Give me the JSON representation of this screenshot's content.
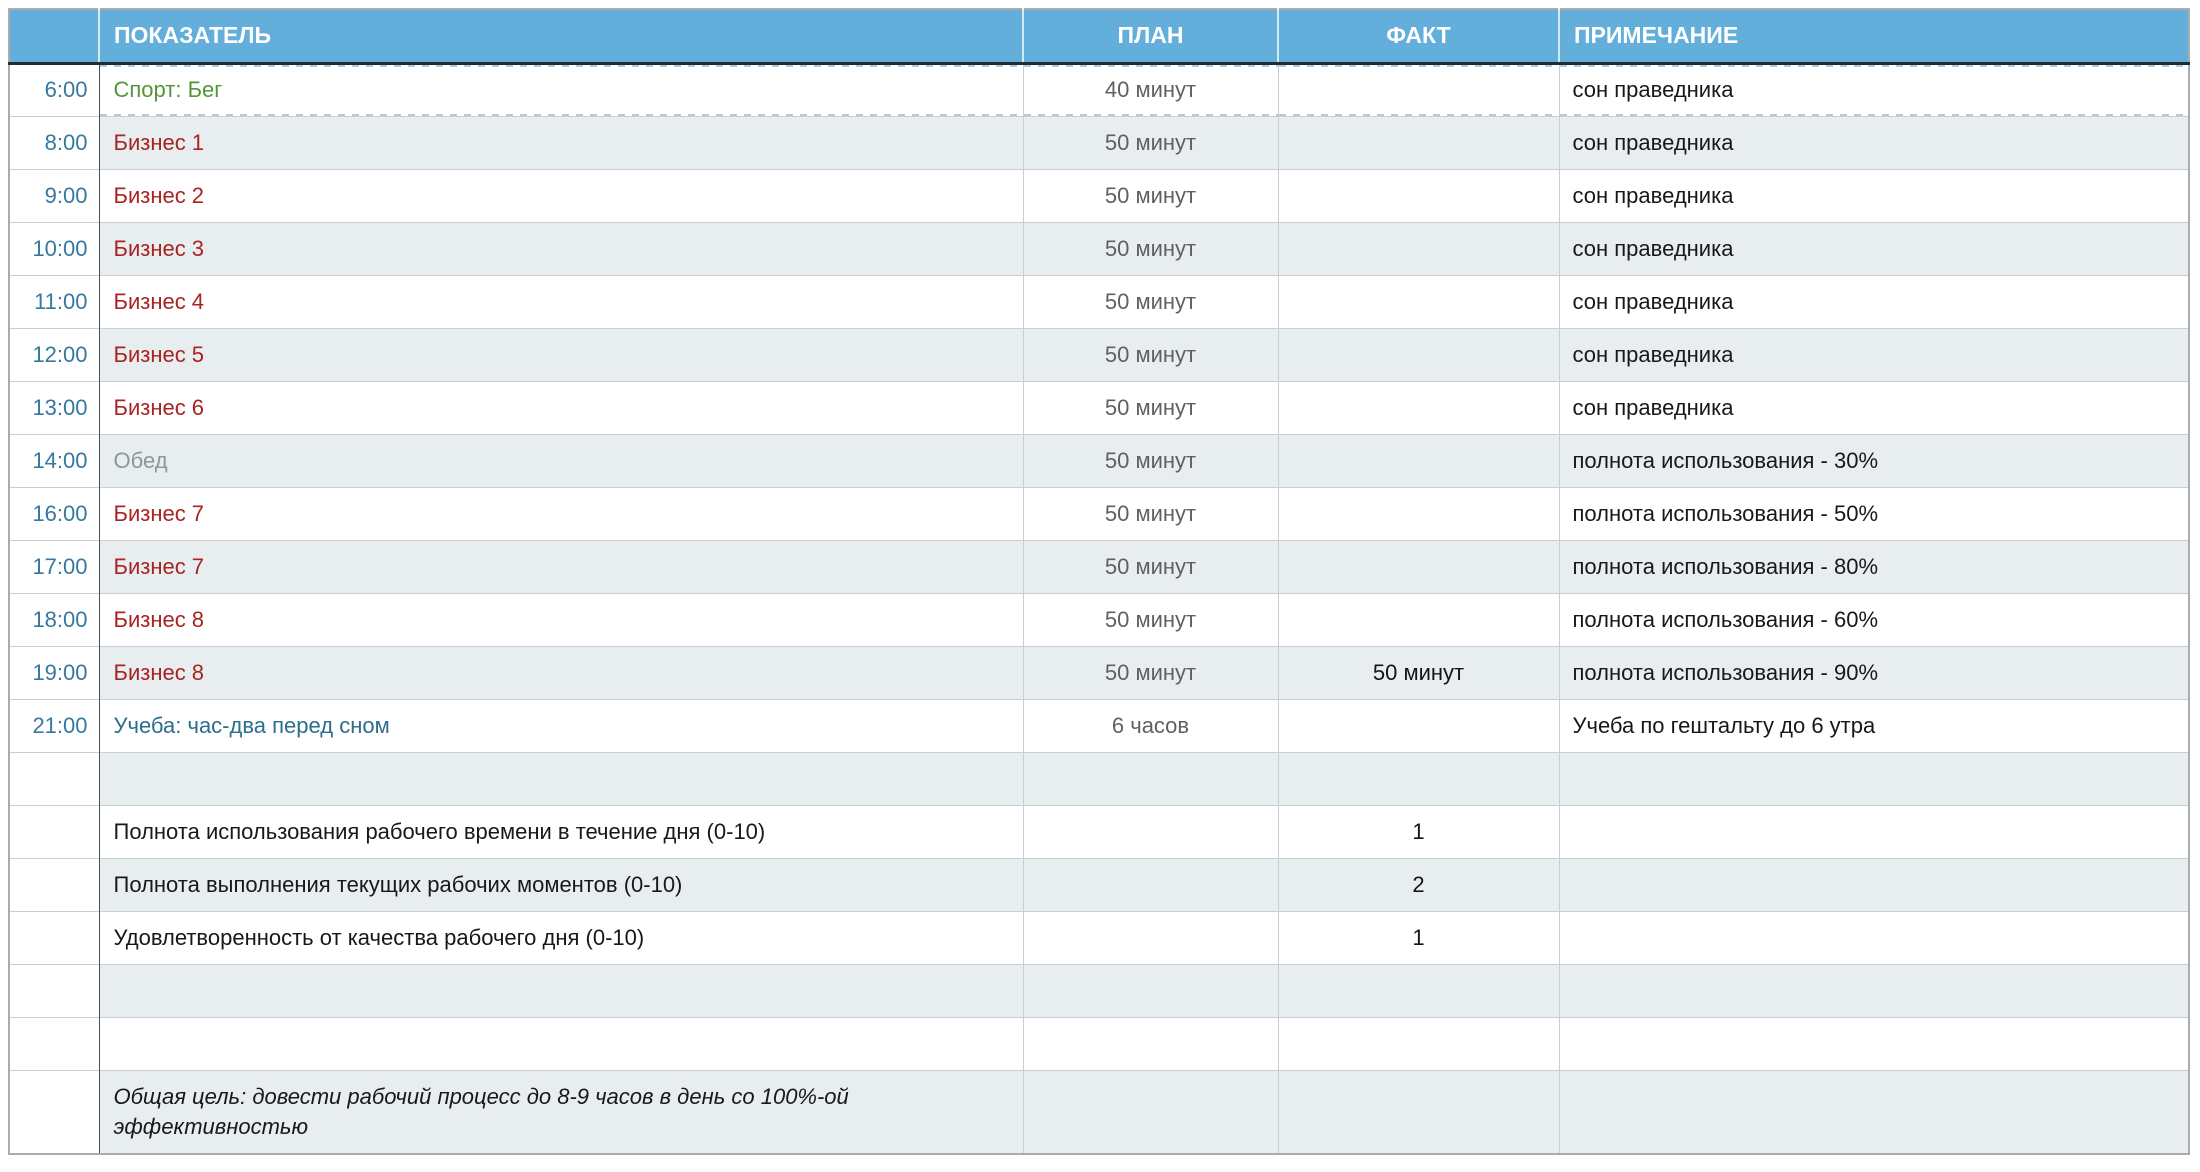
{
  "colors": {
    "header_bg": "#64aedb",
    "header_text": "#ffffff",
    "header_underline": "#1d2d38",
    "grid_line": "#c9ced2",
    "time_divider": "#4a4f53",
    "stripe_bg": "#e8edef",
    "time_text": "#37789e",
    "sport": "#55953a",
    "business": "#a82423",
    "meal": "#8f969a",
    "study": "#2d6e8a",
    "plan_text": "#5d6164",
    "fact_text": "#141517",
    "note_text": "#17181a",
    "text": "#17181a",
    "ants": "#b6c8d4"
  },
  "table": {
    "headers": {
      "time": "",
      "indicator": "ПОКАЗАТЕЛЬ",
      "plan": "ПЛАН",
      "fact": "ФАКТ",
      "note": "ПРИМЕЧАНИЕ"
    },
    "rows": [
      {
        "time": "6:00",
        "indicator": "Спорт: Бег",
        "type": "sport",
        "ants": true,
        "plan": "40 минут",
        "fact": "",
        "note": "сон праведника"
      },
      {
        "time": "8:00",
        "indicator": "Бизнес 1",
        "type": "business",
        "plan": "50 минут",
        "fact": "",
        "note": "сон праведника"
      },
      {
        "time": "9:00",
        "indicator": "Бизнес 2",
        "type": "business",
        "plan": "50 минут",
        "fact": "",
        "note": "сон праведника"
      },
      {
        "time": "10:00",
        "indicator": "Бизнес 3",
        "type": "business",
        "plan": "50 минут",
        "fact": "",
        "note": "сон праведника"
      },
      {
        "time": "11:00",
        "indicator": "Бизнес 4",
        "type": "business",
        "plan": "50 минут",
        "fact": "",
        "note": "сон праведника"
      },
      {
        "time": "12:00",
        "indicator": "Бизнес 5",
        "type": "business",
        "plan": "50 минут",
        "fact": "",
        "note": "сон праведника"
      },
      {
        "time": "13:00",
        "indicator": "Бизнес 6",
        "type": "business",
        "plan": "50 минут",
        "fact": "",
        "note": "сон праведника"
      },
      {
        "time": "14:00",
        "indicator": "Обед",
        "type": "meal",
        "plan": "50 минут",
        "fact": "",
        "note": "полнота использования - 30%"
      },
      {
        "time": "16:00",
        "indicator": "Бизнес 7",
        "type": "business",
        "plan": "50 минут",
        "fact": "",
        "note": "полнота использования - 50%"
      },
      {
        "time": "17:00",
        "indicator": "Бизнес 7",
        "type": "business",
        "plan": "50 минут",
        "fact": "",
        "note": "полнота использования - 80%"
      },
      {
        "time": "18:00",
        "indicator": "Бизнес 8",
        "type": "business",
        "plan": "50 минут",
        "fact": "",
        "note": "полнота использования - 60%"
      },
      {
        "time": "19:00",
        "indicator": "Бизнес 8",
        "type": "business",
        "plan": "50 минут",
        "fact": "50 минут",
        "note": "полнота использования - 90%"
      },
      {
        "time": "21:00",
        "indicator": "Учеба: час-два перед сном",
        "type": "study",
        "plan": "6 часов",
        "fact": "",
        "note": "Учеба по гештальту до 6 утра"
      },
      {
        "time": "",
        "indicator": "",
        "type": "empty",
        "plan": "",
        "fact": "",
        "note": ""
      },
      {
        "time": "",
        "indicator": "Полнота использования рабочего времени в течение дня (0-10)",
        "type": "metric",
        "plan": "",
        "fact": "1",
        "note": ""
      },
      {
        "time": "",
        "indicator": "Полнота выполнения текущих рабочих моментов (0-10)",
        "type": "metric",
        "plan": "",
        "fact": "2",
        "note": ""
      },
      {
        "time": "",
        "indicator": "Удовлетворенность от качества рабочего дня (0-10)",
        "type": "metric",
        "plan": "",
        "fact": "1",
        "note": ""
      },
      {
        "time": "",
        "indicator": "",
        "type": "empty",
        "plan": "",
        "fact": "",
        "note": ""
      },
      {
        "time": "",
        "indicator": "",
        "type": "empty",
        "plan": "",
        "fact": "",
        "note": ""
      },
      {
        "time": "",
        "indicator": "Общая цель: довести рабочий процесс до 8-9 часов в день со 100%-ой эффективностью",
        "type": "goal",
        "plan": "",
        "fact": "",
        "note": ""
      }
    ]
  }
}
